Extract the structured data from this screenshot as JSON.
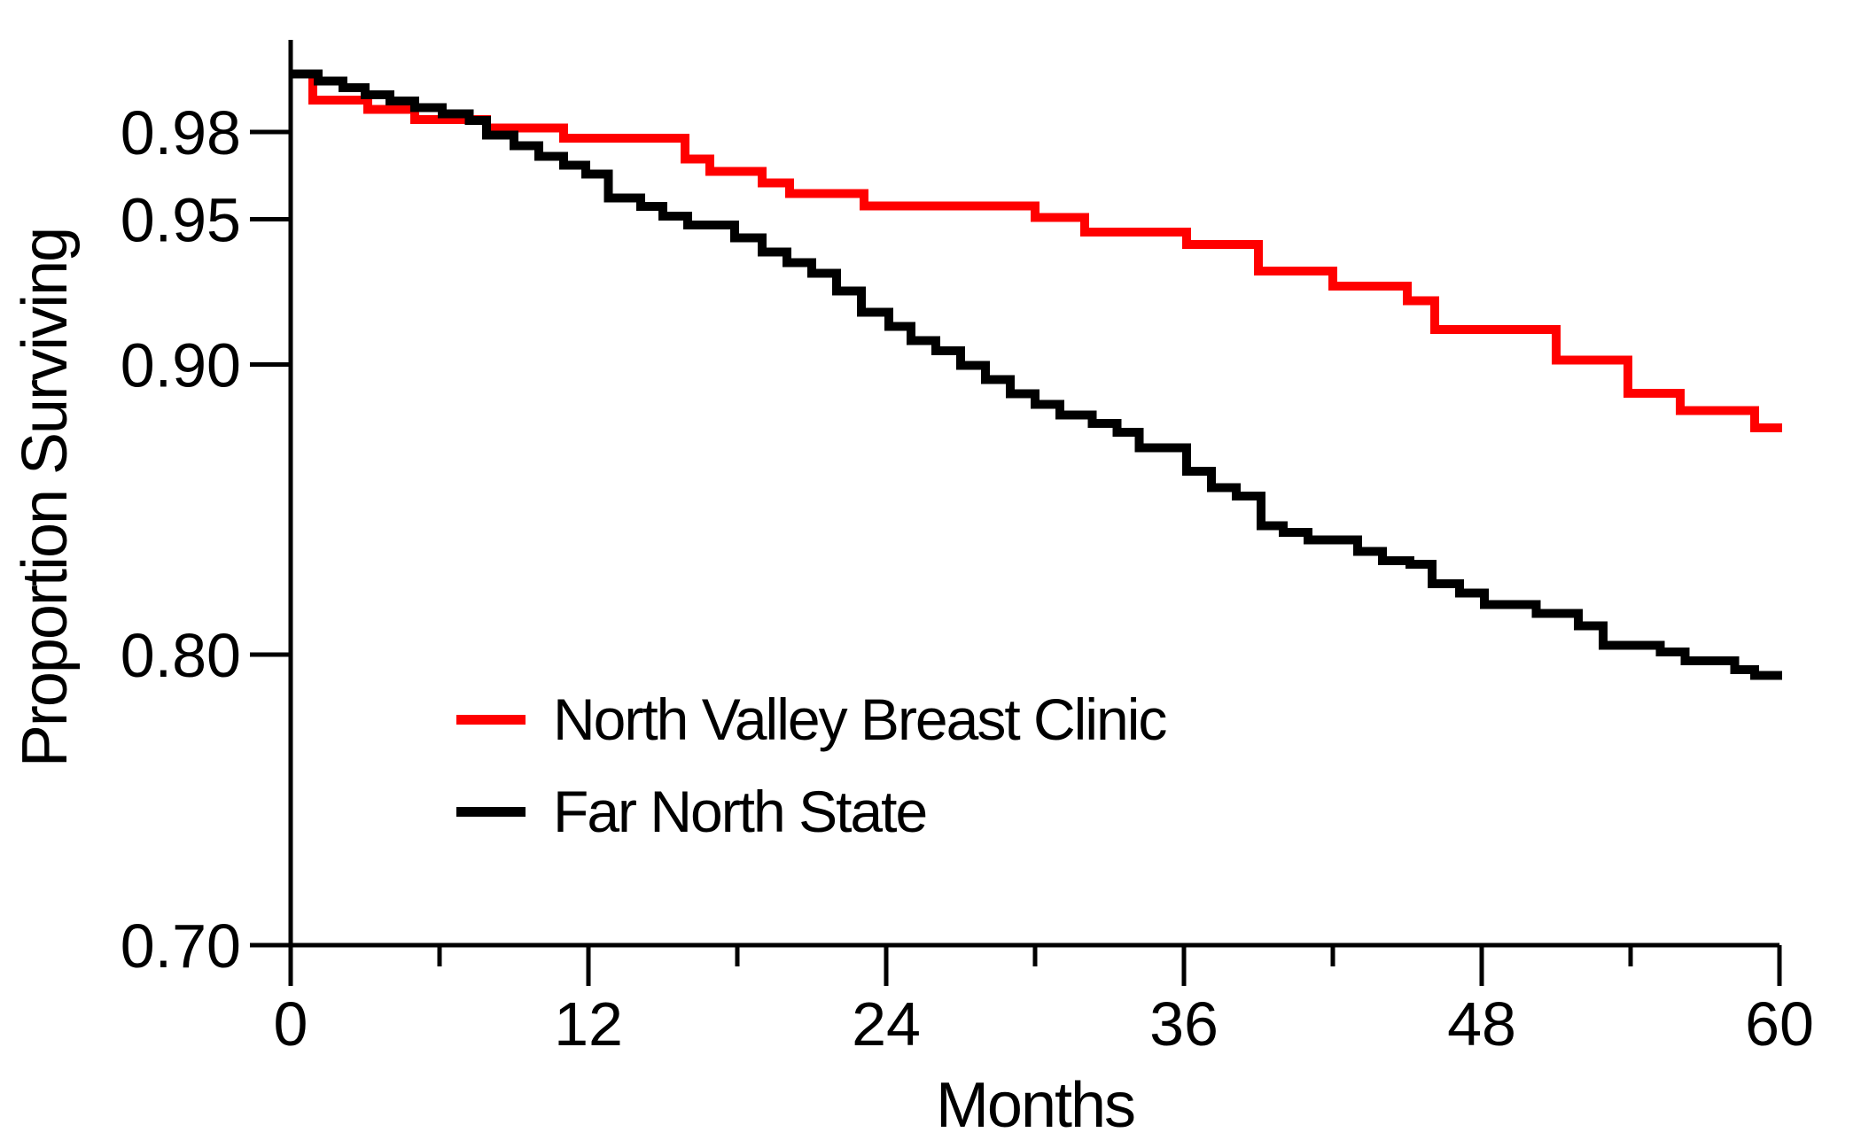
{
  "figure": {
    "background": "#ffffff",
    "text_color": "#000000"
  },
  "chart_data": {
    "type": "line",
    "subtype": "kaplan-meier-step-survival",
    "title": "",
    "xlabel": "Months",
    "ylabel": "Proportion Surviving",
    "grid": "off",
    "x_axis": {
      "min": 0,
      "max": 60,
      "major_ticks": [
        0,
        12,
        24,
        36,
        48,
        60
      ],
      "major_tick_labels": [
        "0",
        "12",
        "24",
        "36",
        "48",
        "60"
      ],
      "minor_ticks": [
        6,
        18,
        30,
        42,
        54
      ]
    },
    "y_axis": {
      "scale": "linear",
      "plotted_bottom": 0.7,
      "plotted_top": 1.012,
      "ticks": [
        {
          "value": 0.98,
          "label": "0.98"
        },
        {
          "value": 0.95,
          "label": "0.95"
        },
        {
          "value": 0.9,
          "label": "0.90"
        },
        {
          "value": 0.8,
          "label": "0.80"
        },
        {
          "value": 0.7,
          "label": "0.70"
        }
      ]
    },
    "legend": {
      "position": "inside lower-left"
    },
    "series": [
      {
        "name": "North Valley Breast Clinic",
        "color": "#ff0000",
        "line_width": 10,
        "end_month": 60.1,
        "points": [
          [
            0,
            1.0
          ],
          [
            0.9,
            0.991
          ],
          [
            3.1,
            0.9877
          ],
          [
            5.0,
            0.9843
          ],
          [
            7.9,
            0.9813
          ],
          [
            11.0,
            0.9779
          ],
          [
            15.9,
            0.9707
          ],
          [
            16.9,
            0.9664
          ],
          [
            19.0,
            0.9625
          ],
          [
            20.1,
            0.9588
          ],
          [
            23.1,
            0.9545
          ],
          [
            30.0,
            0.9505
          ],
          [
            32.0,
            0.9455
          ],
          [
            36.1,
            0.9412
          ],
          [
            39.0,
            0.9321
          ],
          [
            42.0,
            0.927
          ],
          [
            45.0,
            0.9219
          ],
          [
            46.1,
            0.912
          ],
          [
            51.0,
            0.9014
          ],
          [
            53.9,
            0.89
          ],
          [
            56.0,
            0.8841
          ],
          [
            59.0,
            0.8782
          ]
        ]
      },
      {
        "name": "Far North State",
        "color": "#000000",
        "line_width": 10,
        "end_month": 60.1,
        "points": [
          [
            0,
            1.0
          ],
          [
            1.1,
            0.9976
          ],
          [
            2.1,
            0.9952
          ],
          [
            3.0,
            0.9928
          ],
          [
            4.0,
            0.9906
          ],
          [
            5.0,
            0.9884
          ],
          [
            6.1,
            0.9862
          ],
          [
            7.2,
            0.984
          ],
          [
            7.9,
            0.979
          ],
          [
            9.0,
            0.9752
          ],
          [
            10.0,
            0.9716
          ],
          [
            11.0,
            0.9686
          ],
          [
            11.9,
            0.9655
          ],
          [
            12.8,
            0.9573
          ],
          [
            14.1,
            0.9544
          ],
          [
            15.0,
            0.951
          ],
          [
            16.0,
            0.948
          ],
          [
            17.9,
            0.9435
          ],
          [
            19.0,
            0.9386
          ],
          [
            20.0,
            0.935
          ],
          [
            21.0,
            0.9314
          ],
          [
            22.0,
            0.9253
          ],
          [
            23.0,
            0.918
          ],
          [
            24.1,
            0.913
          ],
          [
            25.0,
            0.9082
          ],
          [
            26.0,
            0.9046
          ],
          [
            27.0,
            0.8996
          ],
          [
            28.0,
            0.8948
          ],
          [
            29.0,
            0.8898
          ],
          [
            30.0,
            0.8862
          ],
          [
            31.0,
            0.8826
          ],
          [
            32.3,
            0.8796
          ],
          [
            33.3,
            0.8766
          ],
          [
            34.2,
            0.8712
          ],
          [
            36.1,
            0.8632
          ],
          [
            37.1,
            0.8576
          ],
          [
            38.1,
            0.8546
          ],
          [
            39.1,
            0.8444
          ],
          [
            40.0,
            0.8422
          ],
          [
            41.0,
            0.8396
          ],
          [
            43.0,
            0.8356
          ],
          [
            44.0,
            0.8324
          ],
          [
            45.1,
            0.8312
          ],
          [
            46.0,
            0.8244
          ],
          [
            47.1,
            0.8213
          ],
          [
            48.1,
            0.8172
          ],
          [
            50.2,
            0.8142
          ],
          [
            51.9,
            0.81
          ],
          [
            52.9,
            0.8032
          ],
          [
            55.2,
            0.801
          ],
          [
            56.2,
            0.7979
          ],
          [
            58.2,
            0.7948
          ],
          [
            59.0,
            0.7928
          ]
        ]
      }
    ]
  }
}
